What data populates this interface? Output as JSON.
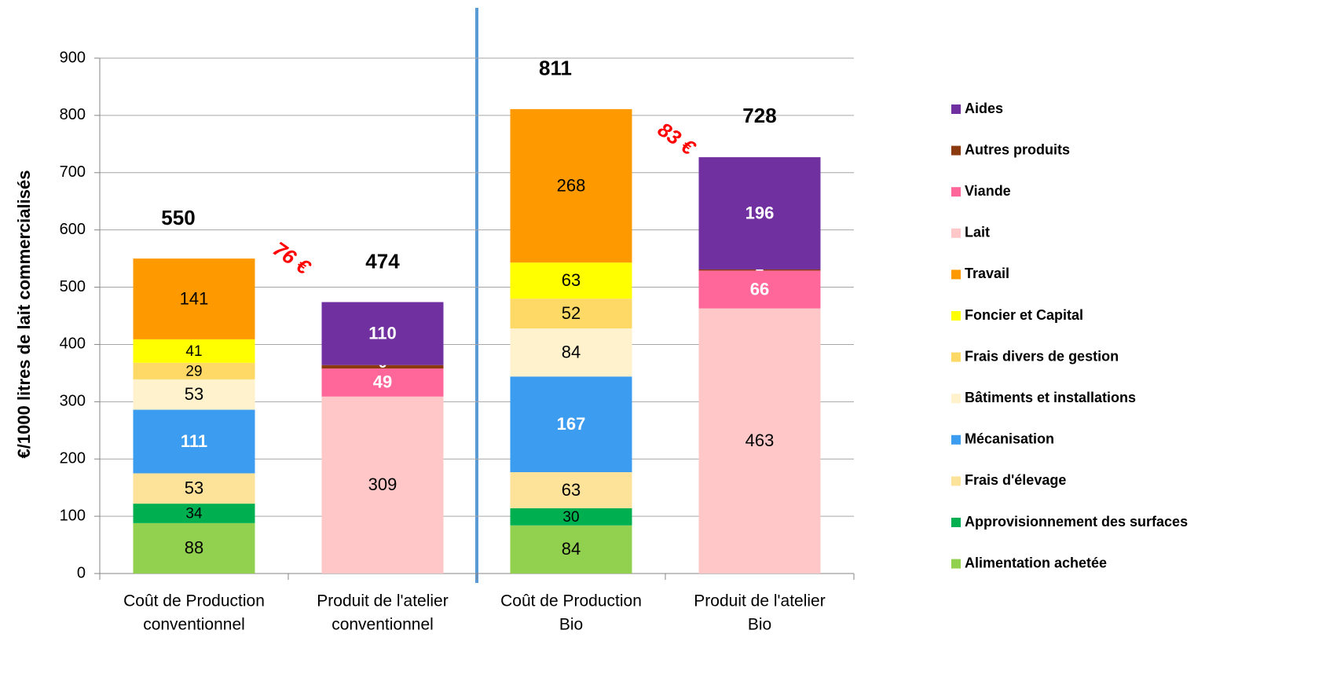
{
  "chart_data": {
    "type": "stacked_bar",
    "y_label": "€/1000 litres de lait commercialisés",
    "categories": [
      [
        "Coût de Production",
        "conventionnel"
      ],
      [
        "Produit de l'atelier",
        "conventionnel"
      ],
      [
        "Coût de Production",
        "Bio"
      ],
      [
        "Produit de l'atelier",
        "Bio"
      ]
    ],
    "series": [
      {
        "name": "Alimentation achetée",
        "color": "#92d050",
        "label_color": "#000000",
        "values": [
          88,
          null,
          84,
          null
        ]
      },
      {
        "name": "Approvisionnement des surfaces",
        "color": "#00b050",
        "label_color": "#000000",
        "values": [
          34,
          null,
          30,
          null
        ]
      },
      {
        "name": "Frais d'élevage",
        "color": "#fde29a",
        "label_color": "#000000",
        "values": [
          53,
          null,
          63,
          null
        ]
      },
      {
        "name": "Mécanisation",
        "color": "#3c9cf0",
        "label_color": "#ffffff",
        "values": [
          111,
          null,
          167,
          null
        ]
      },
      {
        "name": "Bâtiments et installations",
        "color": "#fff2cc",
        "label_color": "#000000",
        "values": [
          53,
          null,
          84,
          null
        ]
      },
      {
        "name": "Frais divers de gestion",
        "color": "#ffd966",
        "label_color": "#000000",
        "values": [
          29,
          null,
          52,
          null
        ]
      },
      {
        "name": "Foncier et Capital",
        "color": "#ffff00",
        "label_color": "#000000",
        "values": [
          41,
          null,
          63,
          null
        ]
      },
      {
        "name": "Travail",
        "color": "#ff9900",
        "label_color": "#000000",
        "values": [
          141,
          null,
          268,
          null
        ]
      },
      {
        "name": "Lait",
        "color": "#ffc7c7",
        "label_color": "#000000",
        "values": [
          null,
          309,
          null,
          463
        ]
      },
      {
        "name": "Viande",
        "color": "#ff6699",
        "label_color": "#ffffff",
        "values": [
          null,
          49,
          null,
          66
        ]
      },
      {
        "name": "Autres produits",
        "color": "#8b3a0f",
        "label_color": "#ffffff",
        "values": [
          null,
          6,
          null,
          2
        ]
      },
      {
        "name": "Aides",
        "color": "#7030a0",
        "label_color": "#ffffff",
        "values": [
          null,
          110,
          null,
          196
        ]
      }
    ],
    "totals": [
      550,
      474,
      811,
      728
    ],
    "annotations": [
      "76 €",
      "83 €"
    ],
    "ylim": [
      0,
      900
    ],
    "yticks": [
      0,
      100,
      200,
      300,
      400,
      500,
      600,
      700,
      800,
      900
    ],
    "grid": true
  }
}
